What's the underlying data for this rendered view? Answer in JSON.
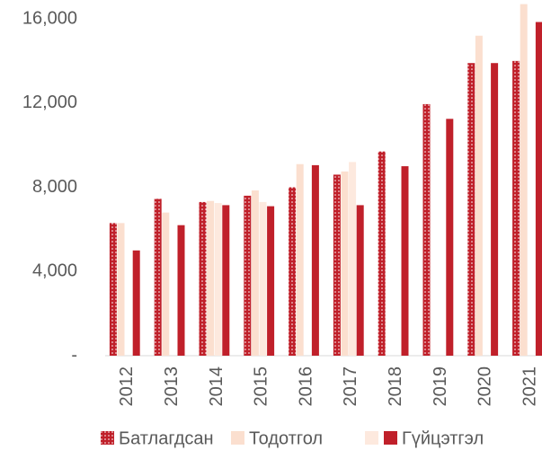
{
  "chart_data": {
    "type": "bar",
    "categories": [
      "2012",
      "2013",
      "2014",
      "2015",
      "2016",
      "2017",
      "2018",
      "2019",
      "2020",
      "2021"
    ],
    "series": [
      {
        "name": "Батлагдсан",
        "color": "#c0202a",
        "pattern": "dots",
        "values": [
          6300,
          7450,
          7300,
          7600,
          8000,
          8600,
          9700,
          11950,
          13900,
          14000
        ]
      },
      {
        "name": "Тодотгол",
        "color": "#fbdfcf",
        "values": [
          6300,
          6800,
          7350,
          7850,
          9100,
          8750,
          null,
          null,
          15200,
          16700
        ]
      },
      {
        "name": null,
        "color": "#fde9de",
        "values": [
          null,
          null,
          7250,
          7300,
          null,
          9200,
          null,
          null,
          null,
          null
        ]
      },
      {
        "name": "Гүйцэтгэл",
        "color": "#c0202a",
        "values": [
          5000,
          6200,
          7150,
          7100,
          9050,
          7150,
          9000,
          11250,
          13900,
          15850
        ]
      }
    ],
    "ylim": [
      0,
      17000
    ],
    "yticks": [
      {
        "value": 0,
        "label": "-"
      },
      {
        "value": 4000,
        "label": "4,000"
      },
      {
        "value": 8000,
        "label": "8,000"
      },
      {
        "value": 12000,
        "label": "12,000"
      },
      {
        "value": 16000,
        "label": "16,000"
      }
    ],
    "grid": false
  }
}
